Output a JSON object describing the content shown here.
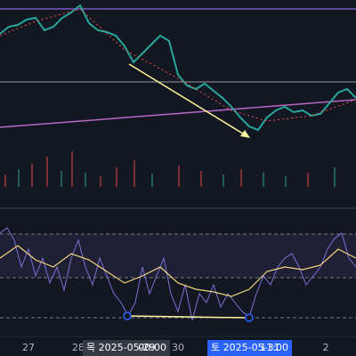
{
  "x_axis": {
    "labels": [
      "27",
      "28",
      "30",
      "2"
    ]
  },
  "crosshair_labels": [
    {
      "date": "목 2025-05-29",
      "time": "00:00"
    },
    {
      "date": "토 2025-05-31",
      "time": "11:00"
    }
  ]
}
